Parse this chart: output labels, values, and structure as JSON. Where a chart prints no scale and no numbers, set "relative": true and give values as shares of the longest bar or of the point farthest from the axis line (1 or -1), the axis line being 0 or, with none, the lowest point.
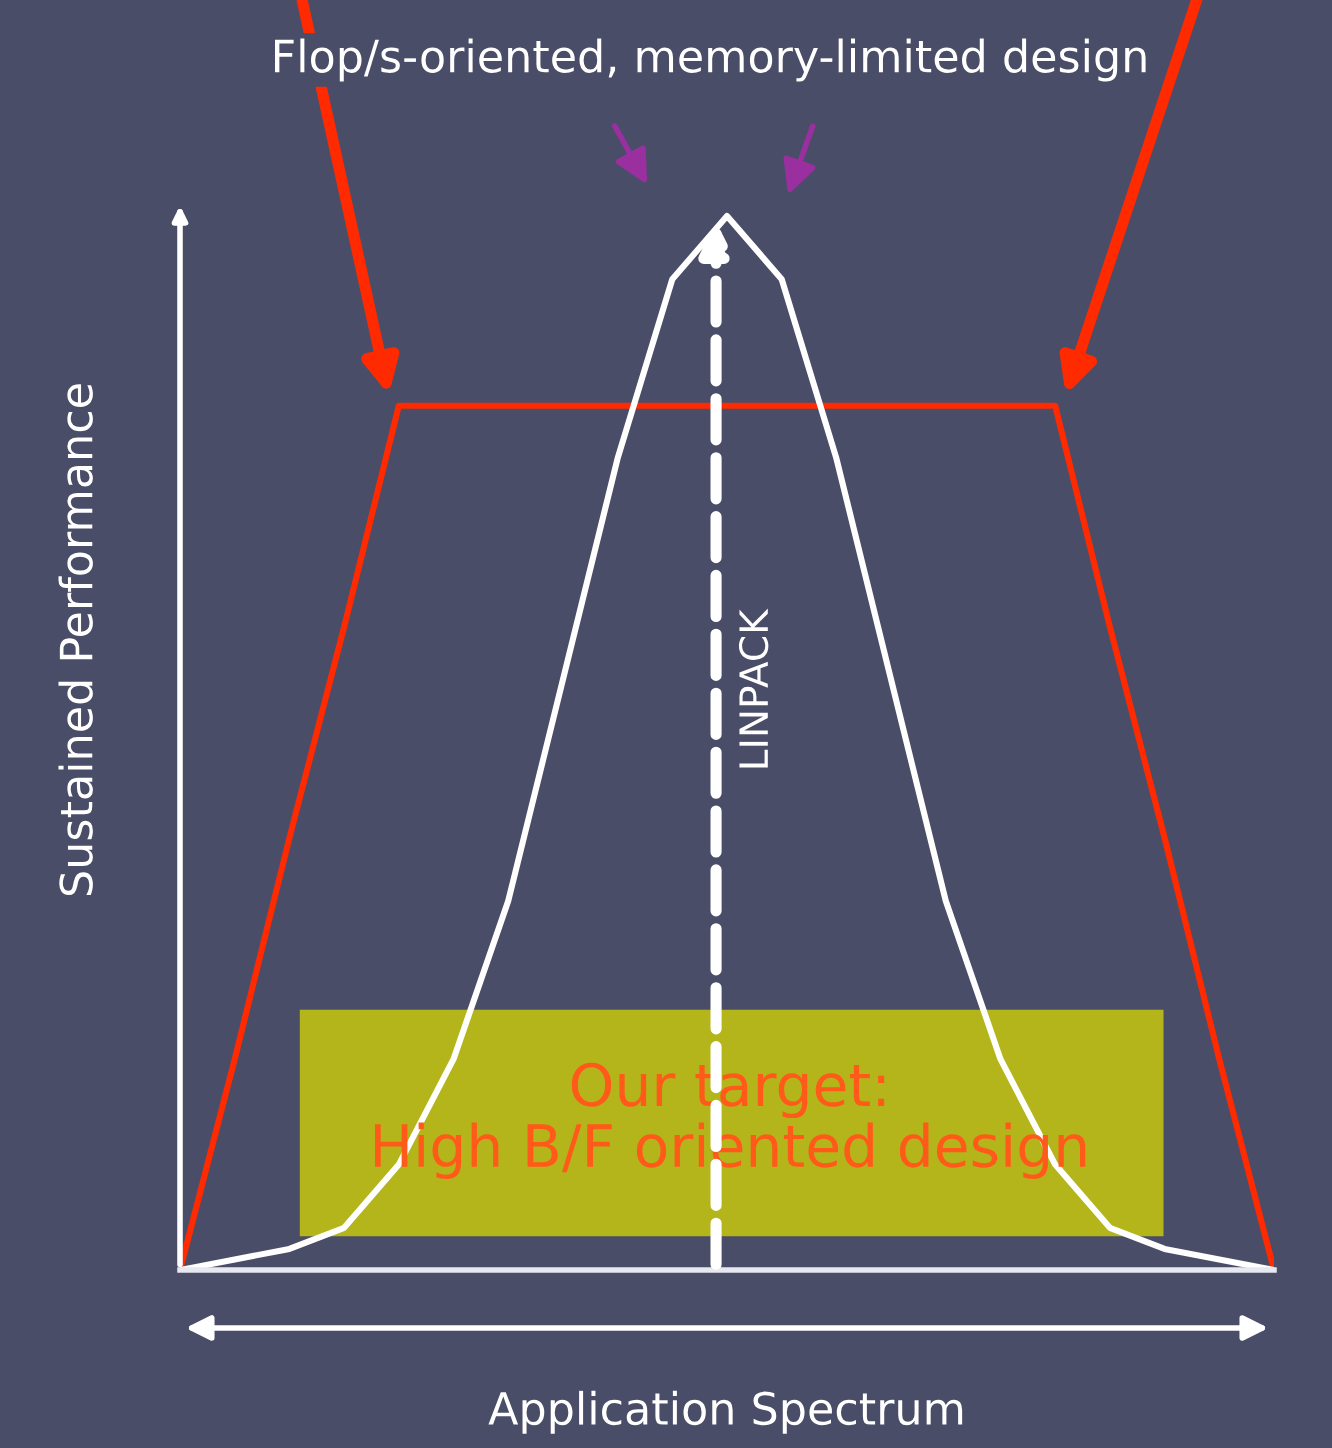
{
  "chart_data": {
    "type": "line",
    "relative": true,
    "xlabel": "Application Spectrum",
    "ylabel": "Sustained Performance",
    "categories": [
      null,
      null,
      null,
      null,
      null,
      null,
      null,
      null,
      null,
      null,
      null,
      null,
      null,
      null,
      null,
      null,
      null,
      null,
      null,
      null,
      null
    ],
    "series": [
      {
        "color": "#ff2a00",
        "values": [
          0,
          0.2,
          0.41,
          0.61,
          0.82,
          0.82,
          0.82,
          0.82,
          0.82,
          0.82,
          0.82,
          0.82,
          0.82,
          0.82,
          0.82,
          0.82,
          0.82,
          0.61,
          0.41,
          0.2,
          0
        ]
      },
      {
        "color": "#ffffff",
        "values": [
          0,
          0.01,
          0.02,
          0.04,
          0.1,
          0.2,
          0.35,
          0.56,
          0.77,
          0.94,
          1,
          0.94,
          0.77,
          0.56,
          0.35,
          0.2,
          0.1,
          0.04,
          0.02,
          0.01,
          0
        ]
      }
    ],
    "annotations": [
      "Flop/s-oriented, memory-limited design",
      "Our target:\nHigh B/F oriented design",
      "LINPACK"
    ],
    "grid": false,
    "legend": false,
    "marker": "none",
    "line_style": "solid"
  }
}
